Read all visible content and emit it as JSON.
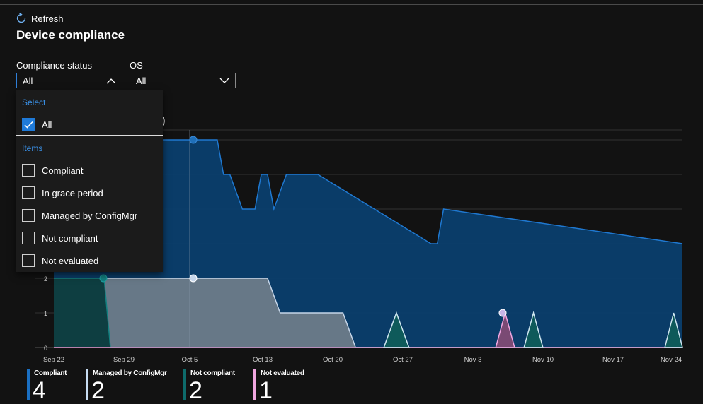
{
  "toolbar": {
    "refresh_label": "Refresh",
    "refresh_icon": "refresh-icon"
  },
  "page": {
    "title": "Device compliance"
  },
  "filters": {
    "compliance_label": "Compliance status",
    "compliance_value": "All",
    "os_label": "OS",
    "os_value": "All"
  },
  "dropdown": {
    "select_header": "Select",
    "all_label": "All",
    "items_header": "Items",
    "items": [
      {
        "label": "Compliant",
        "checked": false
      },
      {
        "label": "In grace period",
        "checked": false
      },
      {
        "label": "Managed by ConfigMgr",
        "checked": false
      },
      {
        "label": "Not compliant",
        "checked": false
      },
      {
        "label": "Not evaluated",
        "checked": false
      }
    ]
  },
  "chart_data": {
    "type": "area",
    "title_fragment": ")",
    "x_labels": [
      "Sep 22",
      "Sep 29",
      "Oct 5",
      "Oct 13",
      "Oct 20",
      "Oct 27",
      "Nov 3",
      "Nov 10",
      "Nov 17",
      "Nov 24"
    ],
    "y_labels": [
      "0",
      "1",
      "2"
    ],
    "ylim": [
      0,
      6
    ],
    "series": [
      {
        "name": "Compliant",
        "color": "#1f6fb8",
        "x": [
          0,
          26,
          27,
          28,
          30,
          32,
          33,
          34,
          35,
          37,
          42,
          60,
          61,
          62,
          100
        ],
        "y": [
          6,
          6,
          5,
          5,
          4,
          4,
          5,
          5,
          4,
          5,
          5,
          3,
          3,
          4,
          3
        ]
      },
      {
        "name": "Managed by ConfigMgr",
        "color": "#c7d6ea",
        "x": [
          0,
          8,
          10,
          34,
          36,
          46,
          48,
          100
        ],
        "y": [
          2,
          2,
          2,
          2,
          1,
          1,
          0,
          0
        ]
      },
      {
        "name": "Not compliant",
        "color": "#0e5a5a",
        "x": [
          0,
          8,
          9,
          100
        ],
        "y": [
          2,
          2,
          0,
          0
        ]
      },
      {
        "name": "Not evaluated",
        "color": "#f0a6e0",
        "x": [
          0,
          100
        ],
        "y": [
          0,
          0
        ]
      }
    ],
    "legend": [
      {
        "label": "Compliant",
        "value": "4",
        "color": "#1a6fc2"
      },
      {
        "label": "Managed by ConfigMgr",
        "value": "2",
        "color": "#c7dcf2"
      },
      {
        "label": "Not compliant",
        "value": "2",
        "color": "#0e6b6b"
      },
      {
        "label": "Not evaluated",
        "value": "1",
        "color": "#f0a6e0"
      }
    ]
  }
}
